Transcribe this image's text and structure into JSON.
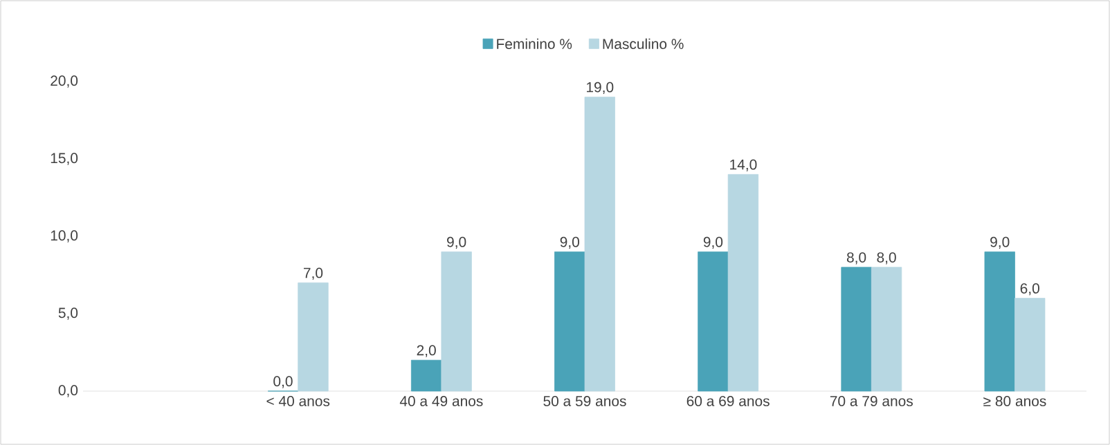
{
  "chart_data": {
    "type": "bar",
    "categories": [
      null,
      "< 40 anos",
      "40 a 49 anos",
      "50 a 59 anos",
      "60 a 69 anos",
      "70 a 79 anos",
      "≥ 80 anos"
    ],
    "series": [
      {
        "name": "Feminino %",
        "color": "#4aa3b8",
        "values": [
          null,
          0,
          2,
          9,
          9,
          8,
          9
        ],
        "value_labels": [
          null,
          "0,0",
          "2,0",
          "9,0",
          "9,0",
          "8,0",
          "9,0"
        ]
      },
      {
        "name": "Masculino %",
        "color": "#b7d7e2",
        "values": [
          null,
          7,
          9,
          19,
          14,
          8,
          6
        ],
        "value_labels": [
          null,
          "7,0",
          "9,0",
          "19,0",
          "14,0",
          "8,0",
          "6,0"
        ]
      }
    ],
    "ylim": [
      0,
      20
    ],
    "yticks": [
      {
        "value": 0,
        "label": "0,0"
      },
      {
        "value": 5,
        "label": "5,0"
      },
      {
        "value": 10,
        "label": "10,0"
      },
      {
        "value": 15,
        "label": "15,0"
      },
      {
        "value": 20,
        "label": "20,0"
      }
    ],
    "grid": false,
    "legend": "top"
  }
}
